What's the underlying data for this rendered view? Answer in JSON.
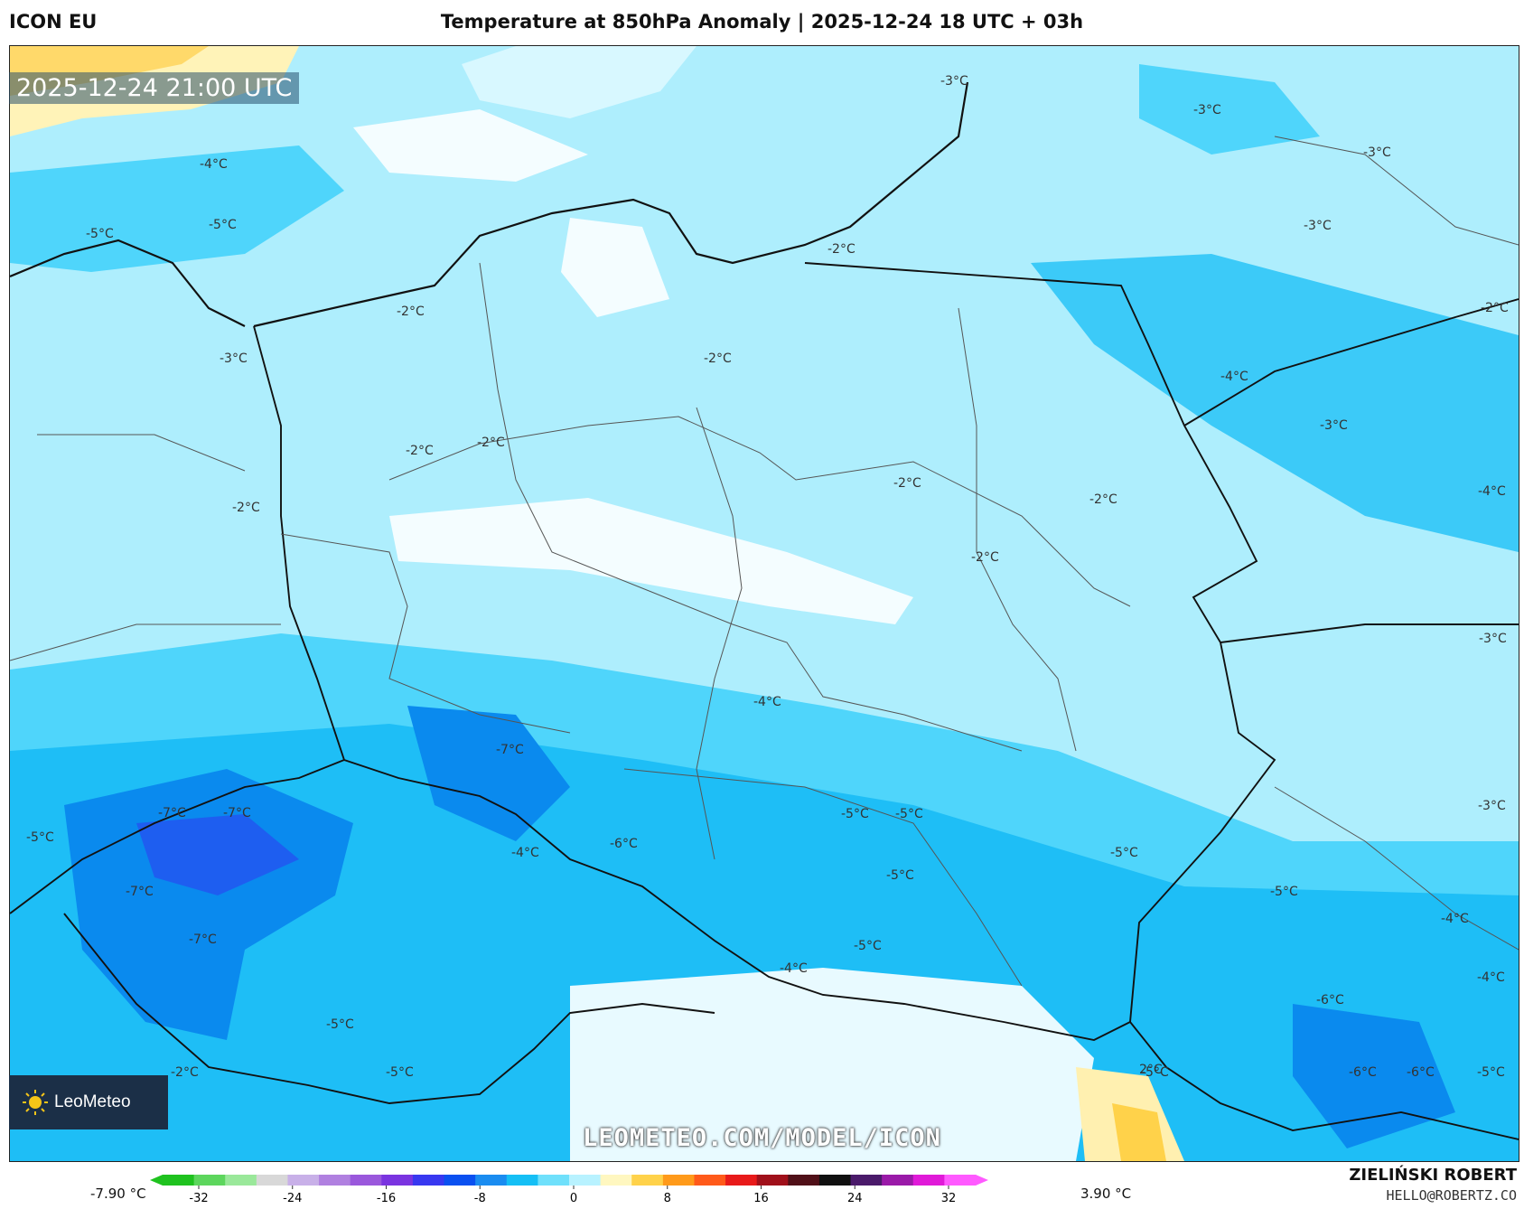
{
  "header": {
    "model": "ICON EU",
    "title": "Temperature at 850hPa Anomaly | 2025-12-24 18 UTC + 03h"
  },
  "map": {
    "valid_time": "2025-12-24 21:00 UTC",
    "watermark": "LEOMETEO.COM/MODEL/ICON",
    "logo_text": "LeoMeteo",
    "contour_labels": [
      "-3°C",
      "-3°C",
      "-3°C",
      "-4°C",
      "-3°C",
      "-5°C",
      "-5°C",
      "-2°C",
      "-2°C",
      "-3°C",
      "-2°C",
      "-2°C",
      "-2°C",
      "-2°C",
      "-2°C",
      "-2°C",
      "-4°C",
      "-3°C",
      "-2°C",
      "-4°C",
      "-3°C",
      "-2°C",
      "-7°C",
      "-4°C",
      "-7°C",
      "-7°C",
      "-5°C",
      "-5°C",
      "-5°C",
      "-5°C",
      "-6°C",
      "-4°C",
      "-5°C",
      "-3°C",
      "-7°C",
      "-5°C",
      "-5°C",
      "-4°C",
      "-7°C",
      "-4°C",
      "-5°C",
      "-4°C",
      "-6°C",
      "-5°C",
      "-2°C",
      "-5°C",
      "2°C",
      "-6°C",
      "-6°C",
      "-5°C"
    ]
  },
  "colorbar": {
    "min_label": "-7.90 °C",
    "max_label": "3.90 °C",
    "ticks": [
      "-32",
      "-24",
      "-16",
      "-8",
      "0",
      "8",
      "16",
      "24",
      "32"
    ],
    "colors": [
      "#1fc21f",
      "#5dd65d",
      "#9ae89a",
      "#d8d8d8",
      "#c8b0e8",
      "#b080e0",
      "#9a58dc",
      "#7a34e0",
      "#3838f0",
      "#0a50f0",
      "#1a8cf0",
      "#15bff5",
      "#6fe0fb",
      "#b8f2ff",
      "#fff7c0",
      "#ffd24a",
      "#ff9a1a",
      "#ff5a1a",
      "#e81a1a",
      "#a0101a",
      "#501018",
      "#101010",
      "#4a1a6a",
      "#9a1aa8",
      "#e01ad8",
      "#ff5aff"
    ]
  },
  "credits": {
    "author": "ZIELIŃSKI ROBERT",
    "email": "HELLO@ROBERTZ.CO"
  }
}
